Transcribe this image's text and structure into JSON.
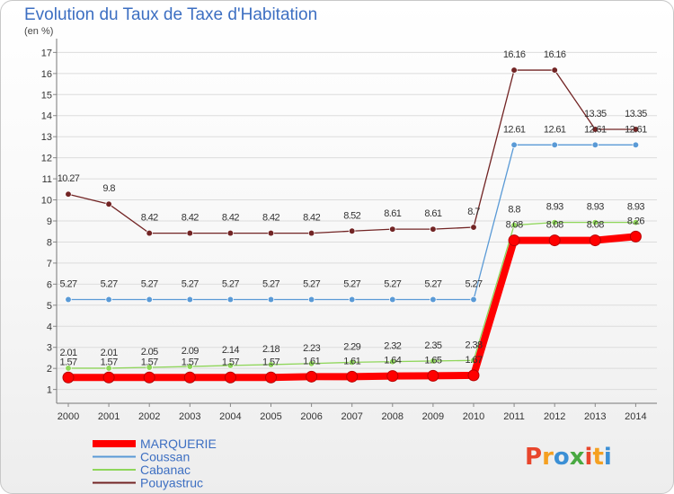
{
  "header": {
    "title": "Evolution du Taux de Taxe d'Habitation",
    "unit": "(en %)"
  },
  "brand": {
    "logo": "Proxiti",
    "colors": [
      "#e8452c",
      "#f5a021",
      "#3b8fd5",
      "#49a942"
    ]
  },
  "chart_data": {
    "type": "line",
    "title": "Evolution du Taux de Taxe d'Habitation",
    "ylabel": "(en %)",
    "xlabel": "",
    "x": [
      "2000",
      "2001",
      "2002",
      "2003",
      "2004",
      "2005",
      "2006",
      "2007",
      "2008",
      "2009",
      "2010",
      "2011",
      "2012",
      "2013",
      "2014"
    ],
    "y_ticks": [
      1,
      2,
      3,
      4,
      5,
      6,
      7,
      8,
      9,
      10,
      11,
      12,
      13,
      14,
      15,
      16,
      17
    ],
    "ylim": [
      0.6,
      17.4
    ],
    "series": [
      {
        "name": "Pouyastruc",
        "color": "#722424",
        "values": [
          10.27,
          9.8,
          8.42,
          8.42,
          8.42,
          8.42,
          8.42,
          8.52,
          8.61,
          8.61,
          8.7,
          16.16,
          16.16,
          13.35,
          13.35
        ],
        "labels": [
          "10.27",
          "9.8",
          "8.42",
          "8.42",
          "8.42",
          "8.42",
          "8.42",
          "8.52",
          "8.61",
          "8.61",
          "8.7",
          "16.16",
          "16.16",
          "13.35",
          "13.35"
        ]
      },
      {
        "name": "Coussan",
        "color": "#5a9ad6",
        "values": [
          5.27,
          5.27,
          5.27,
          5.27,
          5.27,
          5.27,
          5.27,
          5.27,
          5.27,
          5.27,
          5.27,
          12.61,
          12.61,
          12.61,
          12.61
        ],
        "labels": [
          "5.27",
          "5.27",
          "5.27",
          "5.27",
          "5.27",
          "5.27",
          "5.27",
          "5.27",
          "5.27",
          "5.27",
          "5.27",
          "12.61",
          "12.61",
          "12.61",
          "12.61"
        ]
      },
      {
        "name": "Cabanac",
        "color": "#8fd65a",
        "values": [
          2.01,
          2.01,
          2.05,
          2.09,
          2.14,
          2.18,
          2.23,
          2.29,
          2.32,
          2.35,
          2.38,
          8.8,
          8.93,
          8.93,
          8.93
        ],
        "labels": [
          "2.01",
          "2.01",
          "2.05",
          "2.09",
          "2.14",
          "2.18",
          "2.23",
          "2.29",
          "2.32",
          "2.35",
          "2.38",
          "8.8",
          "8.93",
          "8.93",
          "8.93"
        ]
      },
      {
        "name": "MARQUERIE",
        "color": "#ff0000",
        "values": [
          1.57,
          1.57,
          1.57,
          1.57,
          1.57,
          1.57,
          1.61,
          1.61,
          1.64,
          1.65,
          1.67,
          8.08,
          8.08,
          8.08,
          8.26
        ],
        "labels": [
          "1.57",
          "1.57",
          "1.57",
          "1.57",
          "1.57",
          "1.57",
          "1.61",
          "1.61",
          "1.64",
          "1.65",
          "1.67",
          "8.08",
          "8.08",
          "8.08",
          "8.26"
        ]
      }
    ],
    "legend": [
      "MARQUERIE",
      "Coussan",
      "Cabanac",
      "Pouyastruc"
    ],
    "legend_position": "bottom-left"
  }
}
